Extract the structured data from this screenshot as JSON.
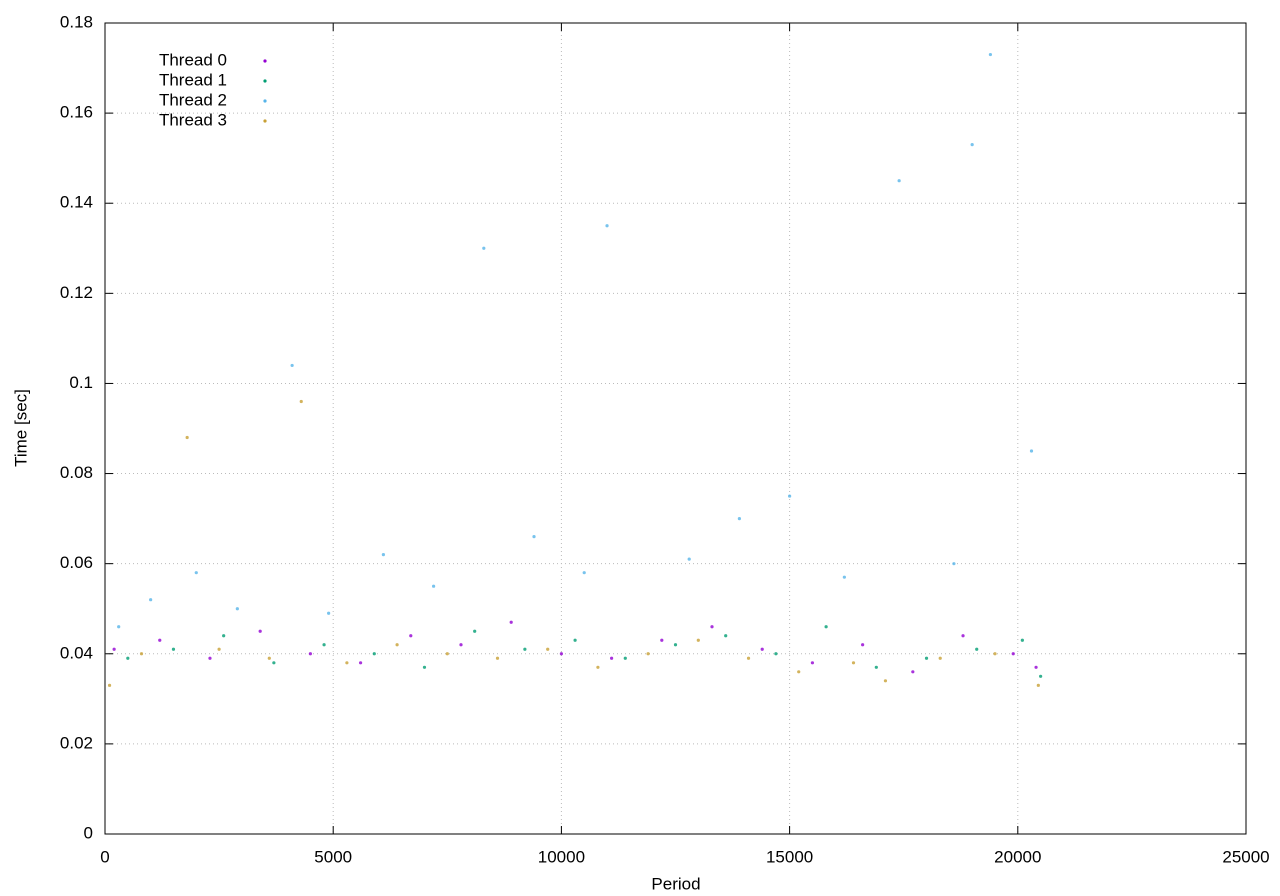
{
  "chart_data": {
    "type": "scatter",
    "x_label": "Period",
    "y_label": "Time [sec]",
    "xlim": [
      0,
      25000
    ],
    "xticks": [
      0,
      5000,
      10000,
      15000,
      20000,
      25000
    ],
    "ylim": [
      0,
      0.18
    ],
    "yticks": [
      0,
      0.02,
      0.04,
      0.06,
      0.08,
      0.1,
      0.12,
      0.14,
      0.16,
      0.18
    ],
    "grid": true,
    "legend": "upper-left",
    "series": [
      {
        "name": "Thread 0",
        "color": "#9400d3",
        "x": [
          200,
          1200,
          2300,
          3400,
          4500,
          5600,
          6700,
          7800,
          8900,
          10000,
          11100,
          12200,
          13300,
          14400,
          15500,
          16600,
          17700,
          18800,
          19900,
          20400
        ],
        "values": [
          0.041,
          0.043,
          0.039,
          0.045,
          0.04,
          0.038,
          0.044,
          0.042,
          0.047,
          0.04,
          0.039,
          0.043,
          0.046,
          0.041,
          0.038,
          0.042,
          0.036,
          0.044,
          0.04,
          0.037
        ]
      },
      {
        "name": "Thread 1",
        "color": "#009e73",
        "x": [
          500,
          1500,
          2600,
          3700,
          4800,
          5900,
          7000,
          8100,
          9200,
          10300,
          11400,
          12500,
          13600,
          14700,
          15800,
          16900,
          18000,
          19100,
          20100,
          20500
        ],
        "values": [
          0.039,
          0.041,
          0.044,
          0.038,
          0.042,
          0.04,
          0.037,
          0.045,
          0.041,
          0.043,
          0.039,
          0.042,
          0.044,
          0.04,
          0.046,
          0.037,
          0.039,
          0.041,
          0.043,
          0.035
        ]
      },
      {
        "name": "Thread 2",
        "color": "#56b4e9",
        "x": [
          300,
          1000,
          2000,
          2900,
          4100,
          4900,
          6100,
          7200,
          8300,
          9400,
          10500,
          11000,
          12800,
          13900,
          15000,
          16200,
          17400,
          18600,
          19000,
          19400,
          20300
        ],
        "values": [
          0.046,
          0.052,
          0.058,
          0.05,
          0.104,
          0.049,
          0.062,
          0.055,
          0.13,
          0.066,
          0.058,
          0.135,
          0.061,
          0.07,
          0.075,
          0.057,
          0.145,
          0.06,
          0.153,
          0.173,
          0.085
        ]
      },
      {
        "name": "Thread 3",
        "color": "#c8a035",
        "x": [
          100,
          800,
          1800,
          2500,
          3600,
          4300,
          5300,
          6400,
          7500,
          8600,
          9700,
          10800,
          11900,
          13000,
          14100,
          15200,
          16400,
          17100,
          18300,
          19500,
          20450
        ],
        "values": [
          0.033,
          0.04,
          0.088,
          0.041,
          0.039,
          0.096,
          0.038,
          0.042,
          0.04,
          0.039,
          0.041,
          0.037,
          0.04,
          0.043,
          0.039,
          0.036,
          0.038,
          0.034,
          0.039,
          0.04,
          0.033
        ]
      }
    ]
  }
}
